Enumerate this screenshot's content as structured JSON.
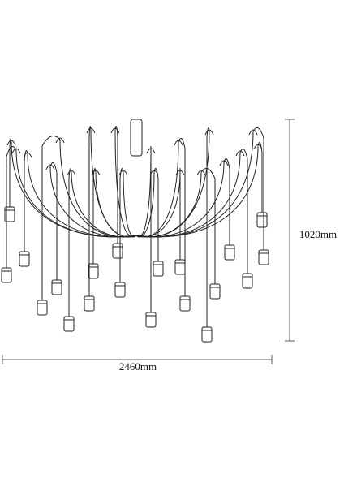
{
  "dimensions": {
    "height": "1020mm",
    "width": "2460mm"
  }
}
